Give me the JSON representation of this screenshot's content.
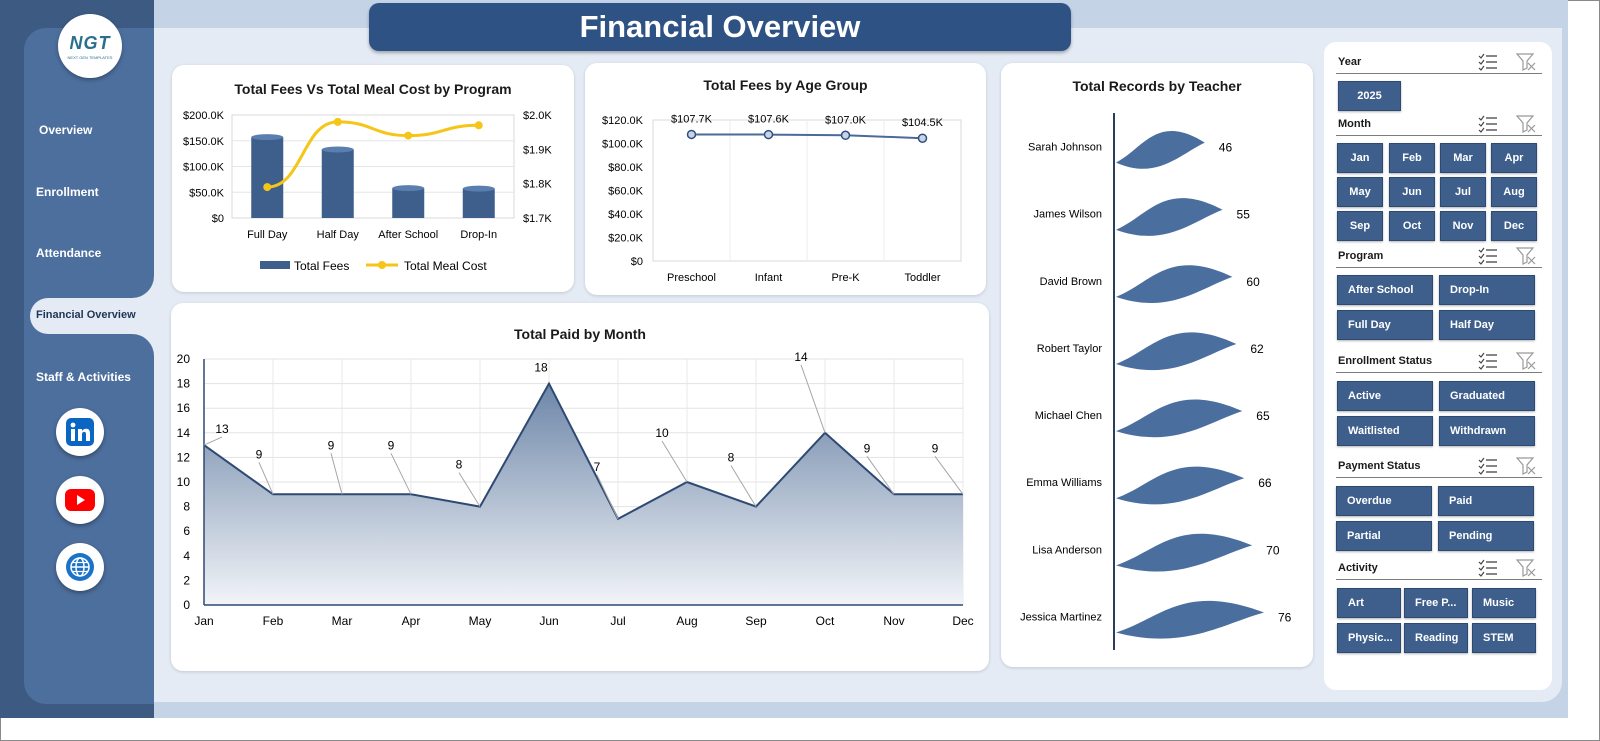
{
  "title": "Financial Overview",
  "logo": {
    "text": "NGT",
    "subtext": "NEXT GEN TEMPLATES"
  },
  "nav": {
    "items": [
      "Overview",
      "Enrollment",
      "Attendance",
      "Financial  Overview",
      "Staff & Activities"
    ],
    "active": "Financial  Overview"
  },
  "social": [
    "linkedin-icon",
    "youtube-icon",
    "globe-icon"
  ],
  "colors": {
    "primary": "#3e5f8c",
    "dark": "#2f5285",
    "accent": "#f5c518",
    "line": "#4a6a9a"
  },
  "charts": {
    "fees_meal": {
      "title": "Total Fees Vs Total Meal Cost by Program",
      "left_ticks": [
        "$200.0K",
        "$150.0K",
        "$100.0K",
        "$50.0K",
        "$0"
      ],
      "right_ticks": [
        "$2.0K",
        "$1.9K",
        "$1.8K",
        "$1.7K"
      ],
      "legend": [
        "Total Fees",
        "Total Meal Cost"
      ]
    },
    "age": {
      "title": "Total Fees by Age Group",
      "ticks": [
        "$120.0K",
        "$100.0K",
        "$80.0K",
        "$60.0K",
        "$40.0K",
        "$20.0K",
        "$0"
      ],
      "labels": [
        "$107.7K",
        "$107.6K",
        "$107.0K",
        "$104.5K"
      ]
    },
    "teacher": {
      "title": "Total Records by Teacher"
    },
    "monthly": {
      "title": "Total Paid by Month",
      "ticks": [
        "20",
        "18",
        "16",
        "14",
        "12",
        "10",
        "8",
        "6",
        "4",
        "2",
        "0"
      ]
    }
  },
  "chart_data": [
    {
      "type": "bar",
      "title": "Total Fees Vs Total Meal Cost by Program",
      "categories": [
        "Full Day",
        "Half Day",
        "After School",
        "Drop-In"
      ],
      "series": [
        {
          "name": "Total Fees",
          "type": "bar",
          "axis": "left",
          "values": [
            157000,
            133000,
            58000,
            57000
          ]
        },
        {
          "name": "Total Meal Cost",
          "type": "line",
          "axis": "right",
          "values": [
            1790,
            1980,
            1940,
            1970
          ]
        }
      ],
      "ylim": [
        0,
        200000
      ],
      "y2lim": [
        1700,
        2000
      ]
    },
    {
      "type": "line",
      "title": "Total Fees by Age Group",
      "categories": [
        "Preschool",
        "Infant",
        "Pre-K",
        "Toddler"
      ],
      "values": [
        107700,
        107600,
        107000,
        104500
      ],
      "ylim": [
        0,
        120000
      ]
    },
    {
      "type": "bar",
      "title": "Total Records by Teacher",
      "categories": [
        "Sarah Johnson",
        "James Wilson",
        "David Brown",
        "Robert Taylor",
        "Michael Chen",
        "Emma Williams",
        "Lisa Anderson",
        "Jessica Martinez"
      ],
      "values": [
        46,
        55,
        60,
        62,
        65,
        66,
        70,
        76
      ]
    },
    {
      "type": "area",
      "title": "Total Paid by Month",
      "categories": [
        "Jan",
        "Feb",
        "Mar",
        "Apr",
        "May",
        "Jun",
        "Jul",
        "Aug",
        "Sep",
        "Oct",
        "Nov",
        "Dec"
      ],
      "values": [
        13,
        9,
        9,
        9,
        8,
        18,
        7,
        10,
        8,
        14,
        9,
        9
      ],
      "ylim": [
        0,
        20
      ],
      "grid": true
    }
  ],
  "slicers": {
    "year": {
      "label": "Year",
      "items": [
        "2025"
      ]
    },
    "month": {
      "label": "Month",
      "items": [
        "Jan",
        "Feb",
        "Mar",
        "Apr",
        "May",
        "Jun",
        "Jul",
        "Aug",
        "Sep",
        "Oct",
        "Nov",
        "Dec"
      ]
    },
    "program": {
      "label": "Program",
      "items": [
        "After School",
        "Drop-In",
        "Full Day",
        "Half Day"
      ]
    },
    "enrollment": {
      "label": "Enrollment Status",
      "items": [
        "Active",
        "Graduated",
        "Waitlisted",
        "Withdrawn"
      ]
    },
    "payment": {
      "label": "Payment Status",
      "items": [
        "Overdue",
        "Paid",
        "Partial",
        "Pending"
      ]
    },
    "activity": {
      "label": "Activity",
      "items": [
        "Art",
        "Free P...",
        "Music",
        "Physic...",
        "Reading",
        "STEM"
      ]
    }
  }
}
